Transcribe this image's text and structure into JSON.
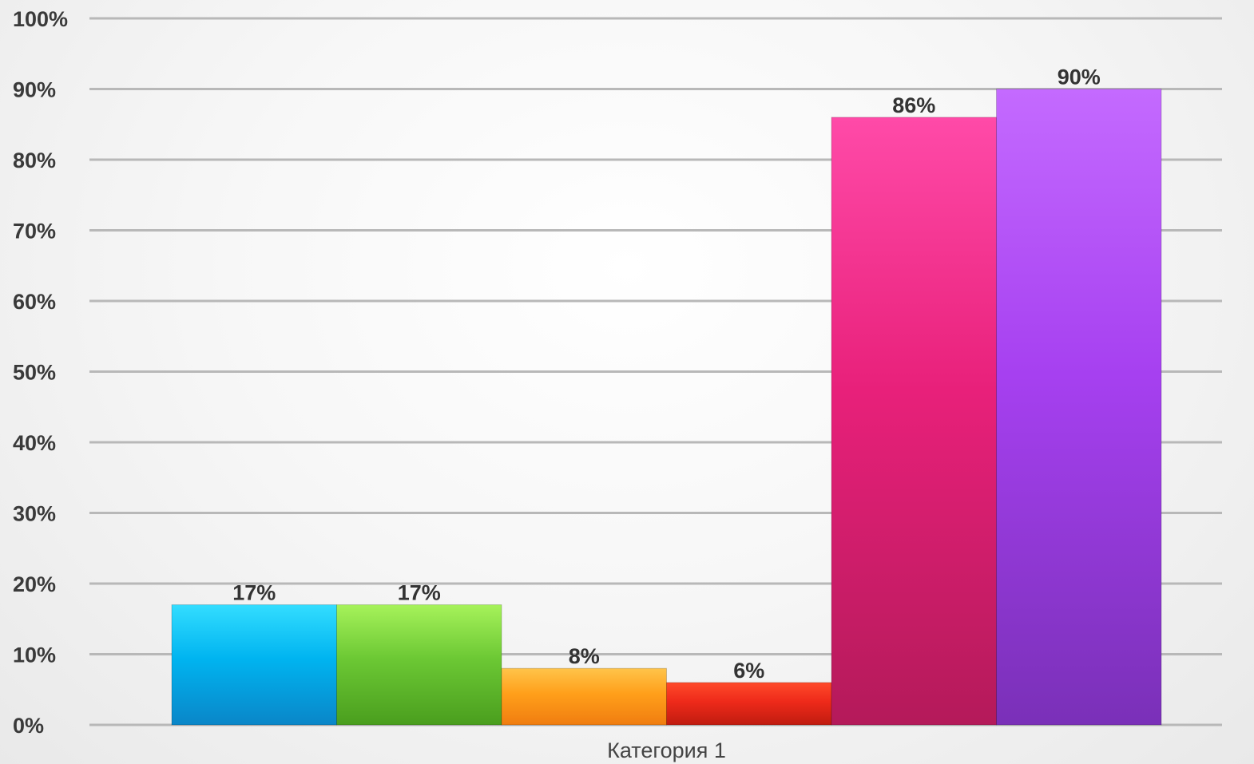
{
  "chart_data": {
    "type": "bar",
    "categories": [
      "Категория 1"
    ],
    "series": [
      {
        "values": [
          17
        ],
        "color": "#00b4f0",
        "color_top": "#33ddff",
        "color_bottom": "#0a86c8",
        "label": "17%"
      },
      {
        "values": [
          17
        ],
        "color": "#6cc834",
        "color_top": "#a6f25a",
        "color_bottom": "#4a9e1e",
        "label": "17%"
      },
      {
        "values": [
          8
        ],
        "color": "#ff9f1a",
        "color_top": "#ffc44a",
        "color_bottom": "#f07d10",
        "label": "8%"
      },
      {
        "values": [
          6
        ],
        "color": "#ee2a1a",
        "color_top": "#ff4a2a",
        "color_bottom": "#c01c10",
        "label": "6%"
      },
      {
        "values": [
          86
        ],
        "color": "#e8207a",
        "color_top": "#ff4aa8",
        "color_bottom": "#b41a5a",
        "label": "86%"
      },
      {
        "values": [
          90
        ],
        "color": "#a640f0",
        "color_top": "#c46aff",
        "color_bottom": "#7a30b8",
        "label": "90%"
      }
    ],
    "title": "",
    "xlabel": "",
    "ylabel": "",
    "ylim": [
      0,
      100
    ],
    "yticks": [
      "0%",
      "10%",
      "20%",
      "30%",
      "40%",
      "50%",
      "60%",
      "70%",
      "80%",
      "90%",
      "100%"
    ],
    "grid": true,
    "legend": "none",
    "gridline_color": "#b8b8b8"
  }
}
